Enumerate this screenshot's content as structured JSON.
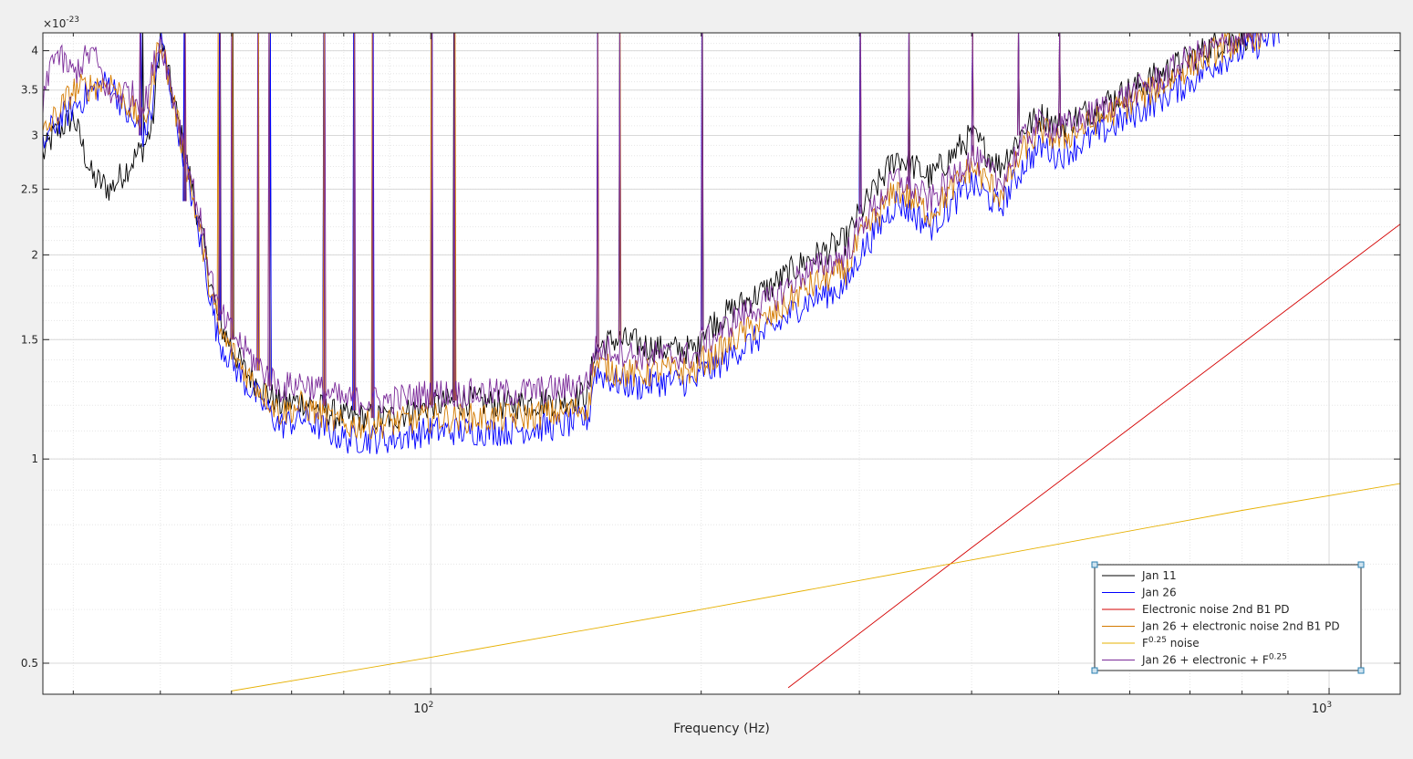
{
  "chart_data": {
    "type": "line",
    "title": "",
    "xlabel": "Frequency (Hz)",
    "ylabel": "",
    "x_scale": "log",
    "y_scale": "log",
    "xlim": [
      37,
      1200
    ],
    "ylim": [
      4.5e-24,
      4.25e-23
    ],
    "y_exponent_label": {
      "base": "×10",
      "exp": "-23"
    },
    "grid": true,
    "minor_grid": true,
    "legend_position": "bottom-right",
    "x_ticks": [
      {
        "value": 100,
        "base": "10",
        "exp": "2"
      },
      {
        "value": 1000,
        "base": "10",
        "exp": "3"
      }
    ],
    "y_ticks": [
      {
        "value": 5e-24,
        "label": "0.5"
      },
      {
        "value": 1e-23,
        "label": "1"
      },
      {
        "value": 1.5e-23,
        "label": "1.5"
      },
      {
        "value": 2e-23,
        "label": "2"
      },
      {
        "value": 2.5e-23,
        "label": "2.5"
      },
      {
        "value": 3e-23,
        "label": "3"
      },
      {
        "value": 3.5e-23,
        "label": "3.5"
      },
      {
        "value": 4e-23,
        "label": "4"
      }
    ],
    "series": [
      {
        "name": "Jan 11",
        "color": "#000000",
        "x": [
          37,
          38,
          40,
          42,
          44,
          48,
          49,
          50,
          55,
          58,
          62,
          68,
          72,
          80,
          90,
          100,
          110,
          120,
          140,
          150,
          152,
          160,
          170,
          180,
          199,
          200,
          205,
          220,
          240,
          260,
          290,
          300,
          330,
          360,
          400,
          430,
          460,
          480,
          500,
          550,
          600,
          650,
          700,
          750,
          800,
          830
        ],
        "y": [
          2.8e-23,
          3e-23,
          3.2e-23,
          2.6e-23,
          2.5e-23,
          2.9e-23,
          3.1e-23,
          4.2e-23,
          2.3e-23,
          1.6e-23,
          1.35e-23,
          1.2e-23,
          1.22e-23,
          1.15e-23,
          1.15e-23,
          1.2e-23,
          1.22e-23,
          1.2e-23,
          1.22e-23,
          1.25e-23,
          1.45e-23,
          1.5e-23,
          1.48e-23,
          1.45e-23,
          1.45e-23,
          1.55e-23,
          1.58e-23,
          1.68e-23,
          1.8e-23,
          1.95e-23,
          2.1e-23,
          2.3e-23,
          2.8e-23,
          2.6e-23,
          3e-23,
          2.7e-23,
          3.1e-23,
          3.2e-23,
          3.1e-23,
          3.3e-23,
          3.5e-23,
          3.7e-23,
          3.9e-23,
          4.1e-23,
          4.2e-23,
          4.25e-23
        ]
      },
      {
        "name": "Jan 26",
        "color": "#0000ff",
        "x": [
          37,
          38,
          40,
          42,
          44,
          46,
          48,
          49,
          50,
          55,
          58,
          62,
          68,
          72,
          80,
          90,
          100,
          110,
          120,
          140,
          150,
          152,
          160,
          170,
          180,
          199,
          200,
          205,
          220,
          240,
          260,
          290,
          300,
          330,
          360,
          400,
          430,
          460,
          480,
          500,
          550,
          600,
          650,
          700,
          750,
          800,
          850,
          880
        ],
        "y": [
          2.9e-23,
          3.1e-23,
          3.3e-23,
          3.5e-23,
          3.6e-23,
          3.2e-23,
          3e-23,
          3.3e-23,
          4.2e-23,
          2.2e-23,
          1.5e-23,
          1.3e-23,
          1.12e-23,
          1.15e-23,
          1.07e-23,
          1.07e-23,
          1.1e-23,
          1.1e-23,
          1.1e-23,
          1.12e-23,
          1.15e-23,
          1.35e-23,
          1.3e-23,
          1.28e-23,
          1.3e-23,
          1.3e-23,
          1.35e-23,
          1.35e-23,
          1.45e-23,
          1.55e-23,
          1.7e-23,
          1.8e-23,
          2e-23,
          2.4e-23,
          2.2e-23,
          2.55e-23,
          2.35e-23,
          2.75e-23,
          2.9e-23,
          2.8e-23,
          3e-23,
          3.2e-23,
          3.4e-23,
          3.6e-23,
          3.85e-23,
          4e-23,
          4.15e-23,
          4.2e-23
        ]
      },
      {
        "name": "Electronic noise 2nd B1 PD",
        "color": "#d40000",
        "x": [
          250,
          400,
          600,
          800,
          1000,
          1200
        ],
        "y": [
          4.6e-24,
          7.4e-24,
          1.11e-23,
          1.48e-23,
          1.85e-23,
          2.22e-23
        ]
      },
      {
        "name": "Jan 26 + electronic noise 2nd B1 PD",
        "color": "#d47a00",
        "x": [
          37,
          40,
          44,
          48,
          50,
          55,
          58,
          62,
          68,
          72,
          80,
          90,
          100,
          110,
          120,
          140,
          150,
          152,
          160,
          170,
          180,
          199,
          200,
          205,
          220,
          240,
          260,
          290,
          300,
          330,
          360,
          400,
          430,
          460,
          480,
          500,
          550,
          600,
          650,
          700,
          750,
          800,
          850
        ],
        "y": [
          3e-23,
          3.5e-23,
          3.6e-23,
          3.1e-23,
          4.2e-23,
          2.25e-23,
          1.55e-23,
          1.35e-23,
          1.17e-23,
          1.2e-23,
          1.12e-23,
          1.13e-23,
          1.15e-23,
          1.15e-23,
          1.15e-23,
          1.17e-23,
          1.2e-23,
          1.38e-23,
          1.35e-23,
          1.33e-23,
          1.35e-23,
          1.35e-23,
          1.4e-23,
          1.4e-23,
          1.52e-23,
          1.62e-23,
          1.78e-23,
          1.9e-23,
          2.1e-23,
          2.5e-23,
          2.3e-23,
          2.7e-23,
          2.45e-23,
          2.9e-23,
          3.05e-23,
          2.95e-23,
          3.15e-23,
          3.35e-23,
          3.55e-23,
          3.8e-23,
          4e-23,
          4.15e-23,
          4.25e-23
        ]
      },
      {
        "name": "F^0.25 noise",
        "color": "#e6b000",
        "x": [
          60,
          100,
          200,
          400,
          800,
          1200
        ],
        "y": [
          4.55e-24,
          5.1e-24,
          6e-24,
          7.1e-24,
          8.4e-24,
          9.2e-24
        ]
      },
      {
        "name": "Jan 26 + electronic + F^0.25",
        "color": "#7b2a99",
        "x": [
          37,
          38,
          40,
          42,
          44,
          46,
          48,
          50,
          55,
          58,
          62,
          68,
          72,
          80,
          90,
          100,
          110,
          120,
          140,
          150,
          152,
          160,
          170,
          180,
          199,
          200,
          205,
          220,
          240,
          260,
          290,
          300,
          330,
          360,
          400,
          430,
          460,
          480,
          500,
          550,
          600,
          650,
          700,
          750,
          800,
          850
        ],
        "y": [
          3.3e-23,
          4e-23,
          3.7e-23,
          4e-23,
          3.4e-23,
          3.5e-23,
          3.3e-23,
          4.2e-23,
          2.35e-23,
          1.65e-23,
          1.45e-23,
          1.27e-23,
          1.3e-23,
          1.22e-23,
          1.22e-23,
          1.25e-23,
          1.25e-23,
          1.25e-23,
          1.27e-23,
          1.3e-23,
          1.45e-23,
          1.45e-23,
          1.42e-23,
          1.42e-23,
          1.42e-23,
          1.5e-23,
          1.5e-23,
          1.62e-23,
          1.72e-23,
          1.88e-23,
          2e-23,
          2.2e-23,
          2.6e-23,
          2.4e-23,
          2.8e-23,
          2.55e-23,
          3e-23,
          3.15e-23,
          3.05e-23,
          3.25e-23,
          3.45e-23,
          3.65e-23,
          3.9e-23,
          4.05e-23,
          4.2e-23,
          4.25e-23
        ]
      }
    ],
    "spikes": [
      {
        "x": 47.5,
        "base": 3e-23
      },
      {
        "x": 53,
        "base": 2.4e-23
      },
      {
        "x": 58,
        "base": 1.6e-23
      },
      {
        "x": 60,
        "base": 1.5e-23
      },
      {
        "x": 64,
        "base": 1.35e-23
      },
      {
        "x": 66,
        "base": 1.28e-23
      },
      {
        "x": 76,
        "base": 1.2e-23
      },
      {
        "x": 82,
        "base": 1.18e-23
      },
      {
        "x": 86,
        "base": 1.15e-23
      },
      {
        "x": 100,
        "base": 1.2e-23
      },
      {
        "x": 106,
        "base": 1.22e-23
      },
      {
        "x": 153,
        "base": 1.4e-23
      },
      {
        "x": 162,
        "base": 1.5e-23
      },
      {
        "x": 200,
        "base": 1.55e-23
      },
      {
        "x": 300,
        "base": 2.3e-23
      },
      {
        "x": 340,
        "base": 2.5e-23
      },
      {
        "x": 400,
        "base": 2.8e-23
      },
      {
        "x": 450,
        "base": 3e-23
      },
      {
        "x": 500,
        "base": 3.1e-23
      }
    ],
    "legend_entries": [
      {
        "label": "Jan 11",
        "sup": "",
        "suffix": "",
        "color": "#000000"
      },
      {
        "label": "Jan 26",
        "sup": "",
        "suffix": "",
        "color": "#0000ff"
      },
      {
        "label": "Electronic noise 2nd B1 PD",
        "sup": "",
        "suffix": "",
        "color": "#d40000"
      },
      {
        "label": "Jan 26 + electronic noise 2nd B1 PD",
        "sup": "",
        "suffix": "",
        "color": "#d47a00"
      },
      {
        "label": "F",
        "sup": "0.25",
        "suffix": " noise",
        "color": "#e6b000"
      },
      {
        "label": "Jan 26 + electronic + F",
        "sup": "0.25",
        "suffix": "",
        "color": "#7b2a99"
      }
    ]
  }
}
